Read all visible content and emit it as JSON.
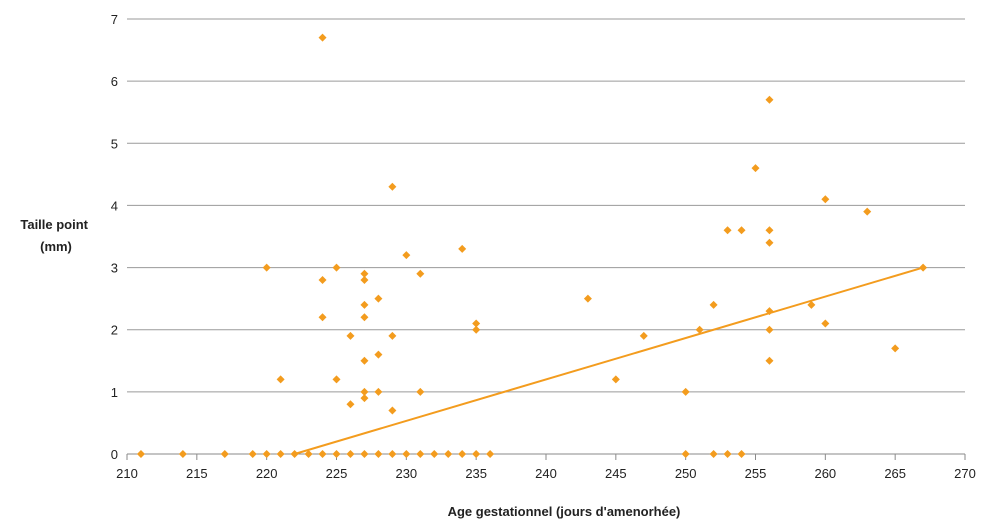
{
  "chart_data": {
    "type": "scatter",
    "title": "",
    "xlabel": "Age gestationnel (jours d'amenorhée)",
    "ylabel_lines": [
      "Taille point",
      "(mm)"
    ],
    "xlim": [
      210,
      270
    ],
    "ylim": [
      0,
      7
    ],
    "x_ticks": [
      210,
      215,
      220,
      225,
      230,
      235,
      240,
      245,
      250,
      255,
      260,
      265,
      270
    ],
    "y_ticks": [
      0,
      1,
      2,
      3,
      4,
      5,
      6,
      7
    ],
    "grid": "horizontal",
    "legend": "none",
    "marker_color": "#F39C1E",
    "trendline_color": "#F39C1E",
    "trendline": {
      "x": [
        222,
        267
      ],
      "y": [
        0,
        3
      ]
    },
    "points": [
      {
        "x": 211,
        "y": 0
      },
      {
        "x": 214,
        "y": 0
      },
      {
        "x": 217,
        "y": 0
      },
      {
        "x": 219,
        "y": 0
      },
      {
        "x": 220,
        "y": 0
      },
      {
        "x": 221,
        "y": 0
      },
      {
        "x": 222,
        "y": 0
      },
      {
        "x": 223,
        "y": 0
      },
      {
        "x": 224,
        "y": 0
      },
      {
        "x": 225,
        "y": 0
      },
      {
        "x": 226,
        "y": 0
      },
      {
        "x": 227,
        "y": 0
      },
      {
        "x": 228,
        "y": 0
      },
      {
        "x": 229,
        "y": 0
      },
      {
        "x": 230,
        "y": 0
      },
      {
        "x": 231,
        "y": 0
      },
      {
        "x": 232,
        "y": 0
      },
      {
        "x": 233,
        "y": 0
      },
      {
        "x": 234,
        "y": 0
      },
      {
        "x": 235,
        "y": 0
      },
      {
        "x": 236,
        "y": 0
      },
      {
        "x": 250,
        "y": 0
      },
      {
        "x": 252,
        "y": 0
      },
      {
        "x": 253,
        "y": 0
      },
      {
        "x": 254,
        "y": 0
      },
      {
        "x": 224,
        "y": 6.7
      },
      {
        "x": 220,
        "y": 3.0
      },
      {
        "x": 221,
        "y": 1.2
      },
      {
        "x": 224,
        "y": 2.8
      },
      {
        "x": 224,
        "y": 2.2
      },
      {
        "x": 225,
        "y": 3.0
      },
      {
        "x": 225,
        "y": 1.2
      },
      {
        "x": 226,
        "y": 1.9
      },
      {
        "x": 226,
        "y": 0.8
      },
      {
        "x": 227,
        "y": 2.9
      },
      {
        "x": 227,
        "y": 2.8
      },
      {
        "x": 227,
        "y": 2.4
      },
      {
        "x": 227,
        "y": 2.2
      },
      {
        "x": 227,
        "y": 1.5
      },
      {
        "x": 227,
        "y": 1.0
      },
      {
        "x": 227,
        "y": 0.9
      },
      {
        "x": 228,
        "y": 2.5
      },
      {
        "x": 228,
        "y": 1.6
      },
      {
        "x": 228,
        "y": 1.0
      },
      {
        "x": 229,
        "y": 4.3
      },
      {
        "x": 229,
        "y": 1.9
      },
      {
        "x": 229,
        "y": 0.7
      },
      {
        "x": 230,
        "y": 3.2
      },
      {
        "x": 231,
        "y": 2.9
      },
      {
        "x": 231,
        "y": 1.0
      },
      {
        "x": 234,
        "y": 3.3
      },
      {
        "x": 235,
        "y": 2.1
      },
      {
        "x": 235,
        "y": 2.0
      },
      {
        "x": 243,
        "y": 2.5
      },
      {
        "x": 245,
        "y": 1.2
      },
      {
        "x": 247,
        "y": 1.9
      },
      {
        "x": 250,
        "y": 1.0
      },
      {
        "x": 251,
        "y": 2.0
      },
      {
        "x": 252,
        "y": 2.4
      },
      {
        "x": 253,
        "y": 3.6
      },
      {
        "x": 254,
        "y": 3.6
      },
      {
        "x": 255,
        "y": 4.6
      },
      {
        "x": 256,
        "y": 5.7
      },
      {
        "x": 256,
        "y": 3.6
      },
      {
        "x": 256,
        "y": 3.4
      },
      {
        "x": 256,
        "y": 2.3
      },
      {
        "x": 256,
        "y": 2.0
      },
      {
        "x": 256,
        "y": 1.5
      },
      {
        "x": 259,
        "y": 2.4
      },
      {
        "x": 260,
        "y": 4.1
      },
      {
        "x": 260,
        "y": 2.1
      },
      {
        "x": 263,
        "y": 3.9
      },
      {
        "x": 265,
        "y": 1.7
      },
      {
        "x": 267,
        "y": 3.0
      }
    ]
  }
}
